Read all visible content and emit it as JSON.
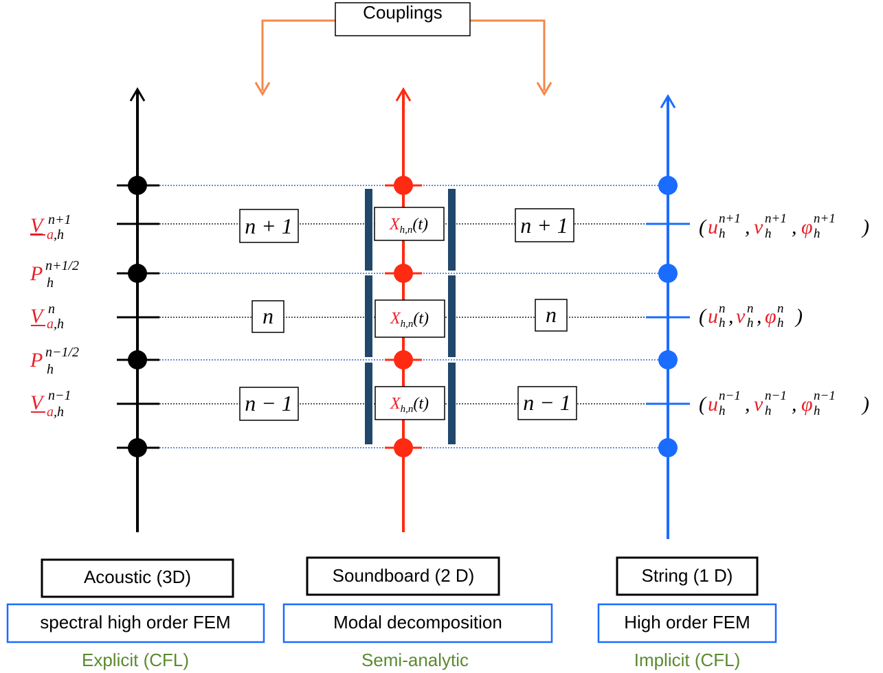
{
  "couplings": {
    "label": "Couplings"
  },
  "step_boxes": {
    "n_plus_1": "n + 1",
    "n": "n",
    "n_minus_1": "n − 1"
  },
  "modal": {
    "main": "X",
    "sub": "h,n",
    "arg": "(t)"
  },
  "left_labels": {
    "v_plus": {
      "base": "V",
      "sup": "n+1",
      "sub": "a,h"
    },
    "p_plus": {
      "base": "P",
      "sup": "n+1/2",
      "sub": "h"
    },
    "v_n": {
      "base": "V",
      "sup": "n",
      "sub": "a,h"
    },
    "p_minus": {
      "base": "P",
      "sup": "n−1/2",
      "sub": "h"
    },
    "v_minus": {
      "base": "V",
      "sup": "n−1",
      "sub": "a,h"
    }
  },
  "right_labels": {
    "plus": {
      "sup": "n+1",
      "sub": "h"
    },
    "n": {
      "sup": "n",
      "sub": "h"
    },
    "minus": {
      "sup": "n−1",
      "sub": "h"
    },
    "vars": [
      "u",
      "v",
      "φ"
    ]
  },
  "columns": {
    "acoustic": {
      "title": "Acoustic (3D)",
      "method": "spectral high order FEM",
      "scheme": "Explicit (CFL)"
    },
    "soundboard": {
      "title": "Soundboard (2 D)",
      "method": "Modal decomposition",
      "scheme": "Semi-analytic"
    },
    "string": {
      "title": "String (1 D)",
      "method": "High order FEM",
      "scheme": "Implicit (CFL)"
    }
  },
  "colors": {
    "acoustic": "#000000",
    "soundboard": "#ff2a12",
    "string": "#1a6cff",
    "coupling_arrow": "#f4874b",
    "bracket": "#21476b",
    "math_red": "#e8202a",
    "scheme_green": "#5a8a2e",
    "method_border": "#1a6cff"
  }
}
